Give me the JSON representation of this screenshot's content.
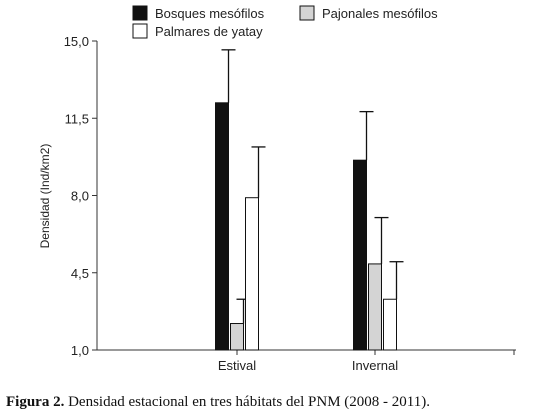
{
  "caption": {
    "label": "Figura 2.",
    "text": "Densidad estacional en tres hábitats del PNM (2008 - 2011)."
  },
  "chart_data": {
    "type": "bar",
    "title": "",
    "xlabel": "",
    "ylabel": "Densidad (Ind/km2)",
    "ylim": [
      1.0,
      15.0
    ],
    "yticks": [
      1.0,
      4.5,
      8.0,
      11.5,
      15.0
    ],
    "ytick_labels": [
      "1,0",
      "4,5",
      "8,0",
      "11,5",
      "15,0"
    ],
    "categories": [
      "Estival",
      "Invernal"
    ],
    "series": [
      {
        "name": "Bosques mesófilos",
        "values": [
          12.2,
          9.6
        ],
        "error": [
          2.4,
          2.2
        ],
        "color": "#111111"
      },
      {
        "name": "Pajonales mesófilos",
        "values": [
          2.2,
          4.9
        ],
        "error": [
          1.1,
          2.1
        ],
        "color": "#d4d4d4"
      },
      {
        "name": "Palmares de yatay",
        "values": [
          7.9,
          3.3
        ],
        "error": [
          2.3,
          1.7
        ],
        "color": "#ffffff"
      }
    ],
    "legend_position": "top",
    "error_bars": "upper",
    "grid": false
  }
}
